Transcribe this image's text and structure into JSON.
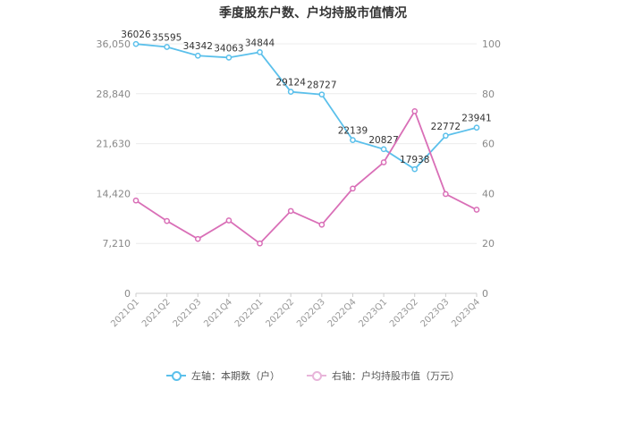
{
  "chart_data": {
    "type": "line",
    "title": "季度股东户数、户均持股市值情况",
    "categories": [
      "2021Q1",
      "2021Q2",
      "2021Q3",
      "2021Q4",
      "2022Q1",
      "2022Q2",
      "2022Q3",
      "2022Q4",
      "2023Q1",
      "2023Q2",
      "2023Q3",
      "2023Q4"
    ],
    "left_axis": {
      "ticks": [
        "0",
        "7,210",
        "14,420",
        "21,630",
        "28,840",
        "36,050"
      ],
      "range": [
        0,
        36050
      ]
    },
    "right_axis": {
      "ticks": [
        "0",
        "20",
        "40",
        "60",
        "80",
        "100"
      ],
      "range": [
        0,
        100
      ]
    },
    "series": [
      {
        "name": "左轴：本期数（户）",
        "axis": "left",
        "color": "#5bc0eb",
        "values": [
          36026,
          35595,
          34342,
          34063,
          34844,
          29124,
          28727,
          22139,
          20827,
          17938,
          22772,
          23941
        ],
        "labels": [
          "36026",
          "35595",
          "34342",
          "34063",
          "34844",
          "29124",
          "28727",
          "22139",
          "20827",
          "17938",
          "22772",
          "23941"
        ]
      },
      {
        "name": "右轴：户均持股市值（万元）",
        "axis": "right",
        "color": "#d96fb7",
        "values": [
          37.2,
          29.0,
          21.8,
          29.2,
          20.0,
          33.0,
          27.5,
          42.0,
          52.5,
          73.0,
          39.8,
          33.5
        ]
      }
    ],
    "grid": true,
    "legend_position": "bottom"
  }
}
